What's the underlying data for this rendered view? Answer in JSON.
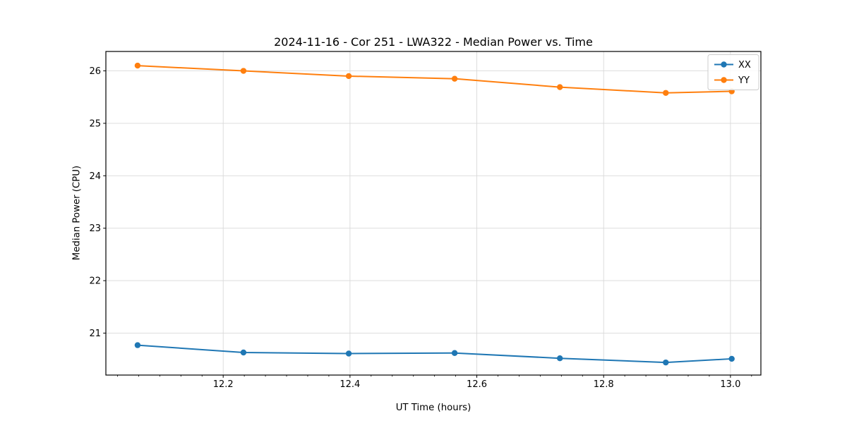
{
  "chart_data": {
    "type": "line",
    "title": "2024-11-16 - Cor 251 - LWA322 - Median Power vs. Time",
    "xlabel": "UT Time (hours)",
    "ylabel": "Median Power (CPU)",
    "x": [
      12.065,
      12.232,
      12.398,
      12.565,
      12.731,
      12.898,
      13.002
    ],
    "series": [
      {
        "name": "XX",
        "color": "#1f77b4",
        "values": [
          20.77,
          20.63,
          20.61,
          20.62,
          20.52,
          20.44,
          20.51
        ]
      },
      {
        "name": "YY",
        "color": "#ff7f0e",
        "values": [
          26.1,
          26.0,
          25.9,
          25.85,
          25.69,
          25.58,
          25.61
        ]
      }
    ],
    "xlim": [
      12.015,
      13.048
    ],
    "ylim": [
      20.2,
      26.37
    ],
    "xticks": [
      12.2,
      12.4,
      12.6,
      12.8,
      13.0
    ],
    "yticks": [
      21,
      22,
      23,
      24,
      25,
      26
    ],
    "x_minor_step": 0.0333333,
    "grid": true,
    "legend_position": "upper right",
    "legend_labels": [
      "XX",
      "YY"
    ],
    "colors": {
      "grid": "#d9d9d9",
      "spine": "#000000",
      "text": "#000000",
      "background": "#ffffff",
      "legend_border": "#cccccc"
    }
  }
}
